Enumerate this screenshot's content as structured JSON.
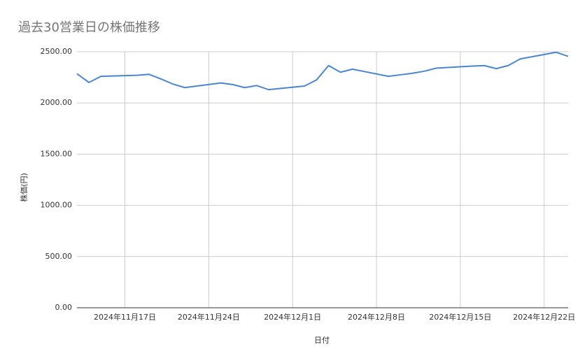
{
  "chart_data": {
    "type": "line",
    "title": "過去30営業日の株価推移",
    "x_label": "日付",
    "y_label": "株価(円)",
    "x": [
      "2024-11-13",
      "2024-11-14",
      "2024-11-15",
      "2024-11-18",
      "2024-11-19",
      "2024-11-20",
      "2024-11-21",
      "2024-11-22",
      "2024-11-25",
      "2024-11-26",
      "2024-11-27",
      "2024-11-28",
      "2024-11-29",
      "2024-12-02",
      "2024-12-03",
      "2024-12-04",
      "2024-12-05",
      "2024-12-06",
      "2024-12-09",
      "2024-12-10",
      "2024-12-11",
      "2024-12-12",
      "2024-12-13",
      "2024-12-16",
      "2024-12-17",
      "2024-12-18",
      "2024-12-19",
      "2024-12-20",
      "2024-12-23",
      "2024-12-24"
    ],
    "series": [
      {
        "color": "#4a86d0",
        "values": [
          2285,
          2200,
          2260,
          2270,
          2280,
          2235,
          2185,
          2150,
          2195,
          2180,
          2150,
          2170,
          2130,
          2165,
          2225,
          2365,
          2300,
          2330,
          2260,
          2275,
          2290,
          2310,
          2340,
          2360,
          2365,
          2335,
          2365,
          2430,
          2495,
          2455
        ]
      }
    ],
    "xlim": [
      "2024-11-13",
      "2024-12-24"
    ],
    "xticks": [
      {
        "value": "2024-11-17",
        "label": "2024年11月17日"
      },
      {
        "value": "2024-11-24",
        "label": "2024年11月24日"
      },
      {
        "value": "2024-12-01",
        "label": "2024年12月1日"
      },
      {
        "value": "2024-12-08",
        "label": "2024年12月8日"
      },
      {
        "value": "2024-12-15",
        "label": "2024年12月15日"
      },
      {
        "value": "2024-12-22",
        "label": "2024年12月22日"
      }
    ],
    "ylim": [
      0,
      2500
    ],
    "yticks": [
      {
        "value": 0,
        "label": "0.00"
      },
      {
        "value": 500,
        "label": "500.00"
      },
      {
        "value": 1000,
        "label": "1000.00"
      },
      {
        "value": 1500,
        "label": "1500.00"
      },
      {
        "value": 2000,
        "label": "2000.00"
      },
      {
        "value": 2500,
        "label": "2500.00"
      }
    ],
    "grid": true
  }
}
